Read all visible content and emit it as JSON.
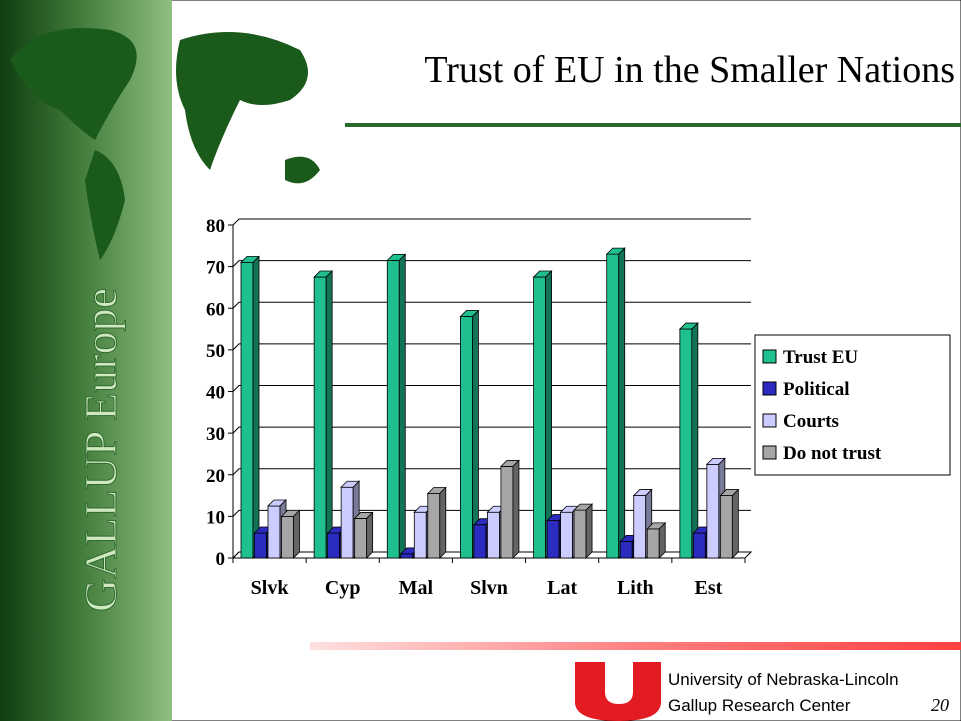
{
  "chart_data": {
    "type": "bar",
    "title": "Trust of EU in the Smaller Nations",
    "categories": [
      "Slvk",
      "Cyp",
      "Mal",
      "Slvn",
      "Lat",
      "Lith",
      "Est"
    ],
    "series": [
      {
        "name": "Trust EU",
        "color": "#1fbf8f",
        "values": [
          71,
          67.5,
          71.5,
          58,
          67.5,
          73,
          55
        ]
      },
      {
        "name": "Political",
        "color": "#2b2bbf",
        "values": [
          6,
          6,
          1,
          8,
          9,
          4,
          6
        ]
      },
      {
        "name": "Courts",
        "color": "#ccccff",
        "values": [
          12.5,
          17,
          11,
          11,
          11,
          15,
          22.5
        ]
      },
      {
        "name": "Do not trust",
        "color": "#a6a6a6",
        "values": [
          10,
          9.5,
          15.5,
          22,
          11.5,
          7,
          15
        ]
      }
    ],
    "ylim": [
      0,
      80
    ],
    "yticks": [
      0,
      10,
      20,
      30,
      40,
      50,
      60,
      70,
      80
    ],
    "grid": true,
    "legend": "right"
  },
  "sidebar": "GALLUP Europe",
  "footer": {
    "line1": "University of Nebraska-Lincoln",
    "line2": "Gallup Research Center",
    "page": "20"
  }
}
